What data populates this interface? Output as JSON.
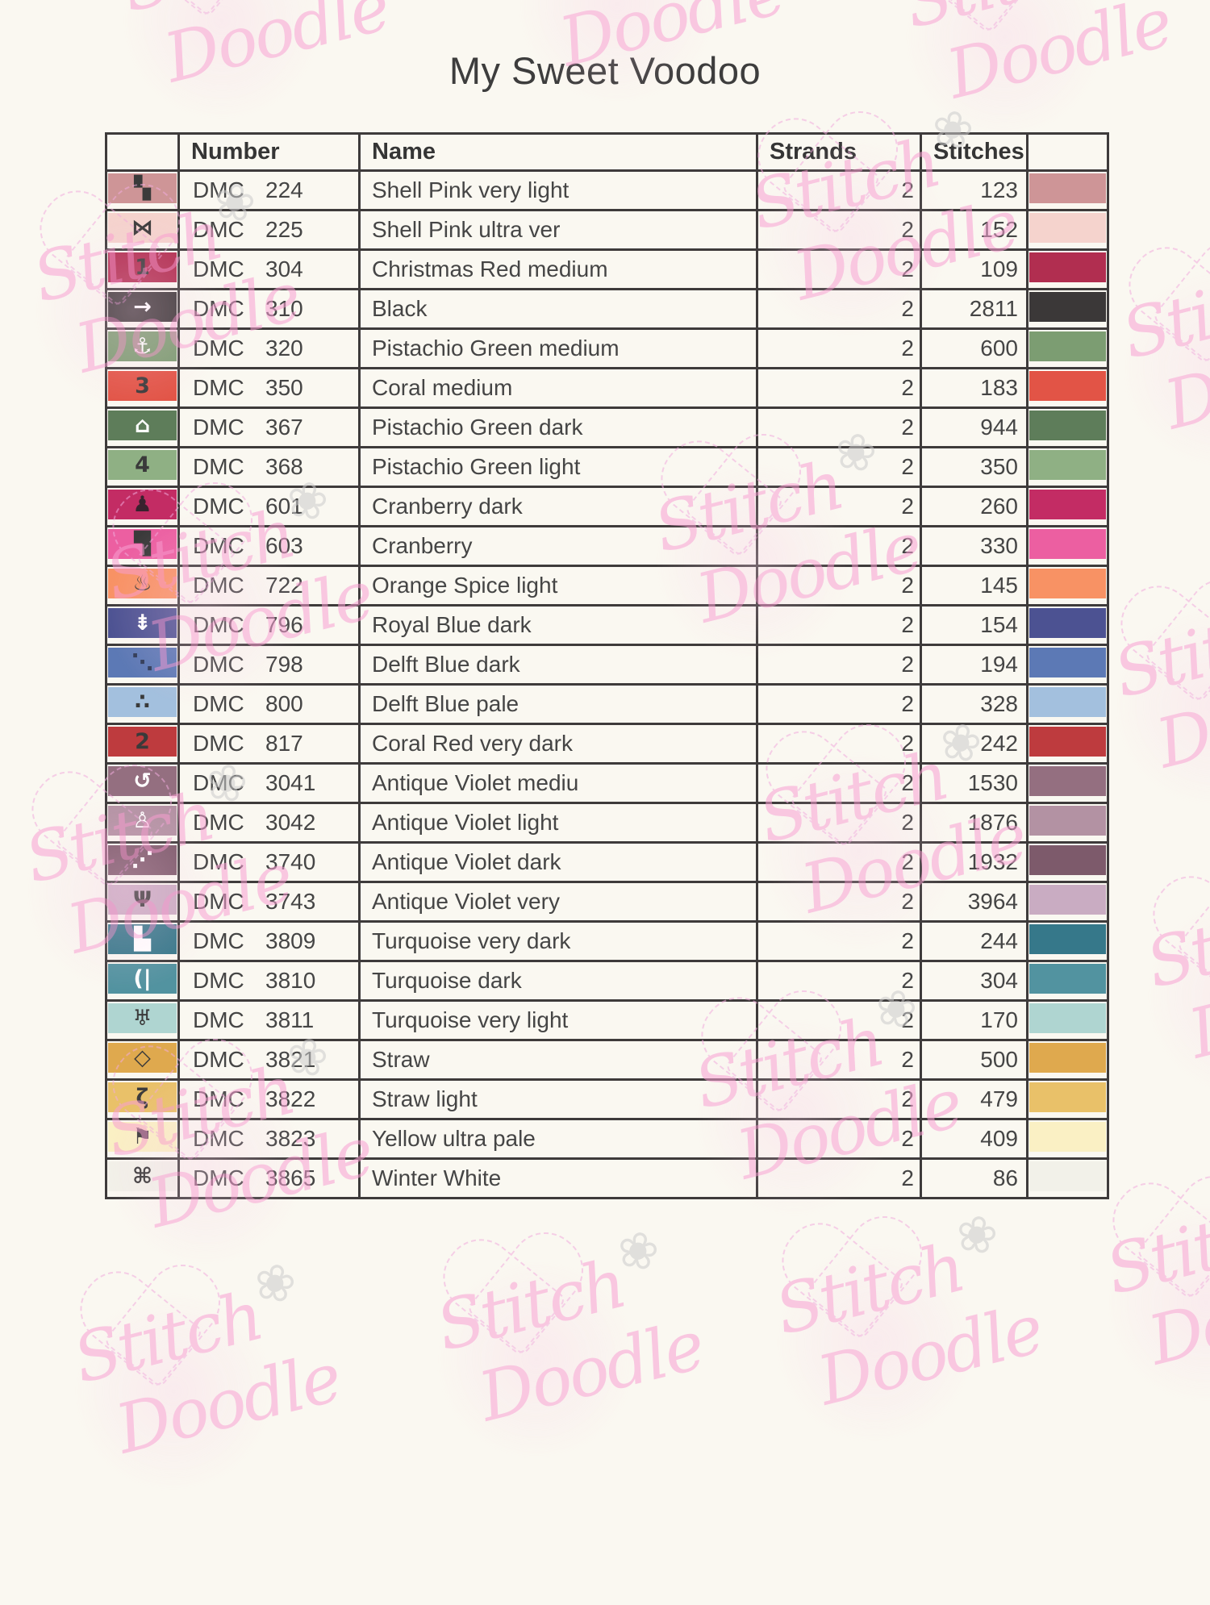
{
  "title": "My Sweet Voodoo",
  "watermark": {
    "word1": "Stitch",
    "word2": "Doodle",
    "flower_icon": "❀"
  },
  "table": {
    "brand": "DMC",
    "headers": {
      "symbol": "",
      "number": "Number",
      "name": "Name",
      "strands": "Strands",
      "stitches": "Stitches",
      "color": ""
    },
    "rows": [
      {
        "code": "224",
        "name": "Shell Pink very light",
        "strands": "2",
        "stitches": "123",
        "color": "#CE9597",
        "symbol": "▚",
        "symbol_fg": "#3A3A3A",
        "icon": "diagonal-squares-icon"
      },
      {
        "code": "225",
        "name": "Shell Pink ultra ver",
        "strands": "2",
        "stitches": "152",
        "color": "#F5D3CD",
        "symbol": "⋈",
        "symbol_fg": "#3A3A3A",
        "icon": "bowtie-icon"
      },
      {
        "code": "304",
        "name": "Christmas Red medium",
        "strands": "2",
        "stitches": "109",
        "color": "#B12E50",
        "symbol": "1",
        "symbol_fg": "#3A3A3A",
        "icon": "digit-1-icon"
      },
      {
        "code": "310",
        "name": "Black",
        "strands": "2",
        "stitches": "2811",
        "color": "#3B3838",
        "symbol": "→",
        "symbol_fg": "#FFFFFF",
        "icon": "arrow-right-icon"
      },
      {
        "code": "320",
        "name": "Pistachio Green medium",
        "strands": "2",
        "stitches": "600",
        "color": "#7C9D72",
        "symbol": "⚓",
        "symbol_fg": "#FFFFFF",
        "icon": "anchor-icon"
      },
      {
        "code": "350",
        "name": "Coral medium",
        "strands": "2",
        "stitches": "183",
        "color": "#E25446",
        "symbol": "3",
        "symbol_fg": "#3A3A3A",
        "icon": "digit-3-icon"
      },
      {
        "code": "367",
        "name": "Pistachio Green dark",
        "strands": "2",
        "stitches": "944",
        "color": "#5E7D5A",
        "symbol": "⌂",
        "symbol_fg": "#FFFFFF",
        "icon": "house-icon"
      },
      {
        "code": "368",
        "name": "Pistachio Green light",
        "strands": "2",
        "stitches": "350",
        "color": "#8FB084",
        "symbol": "4",
        "symbol_fg": "#3A3A3A",
        "icon": "digit-4-icon"
      },
      {
        "code": "601",
        "name": "Cranberry dark",
        "strands": "2",
        "stitches": "260",
        "color": "#C32C64",
        "symbol": "♟",
        "symbol_fg": "#39222E",
        "icon": "person-icon"
      },
      {
        "code": "603",
        "name": "Cranberry",
        "strands": "2",
        "stitches": "330",
        "color": "#EC5FA1",
        "symbol": "▜",
        "symbol_fg": "#3A3A3A",
        "icon": "notched-square-icon"
      },
      {
        "code": "722",
        "name": "Orange Spice light",
        "strands": "2",
        "stitches": "145",
        "color": "#F89264",
        "symbol": "♨",
        "symbol_fg": "#3A3A3A",
        "icon": "hot-springs-icon"
      },
      {
        "code": "796",
        "name": "Royal Blue dark",
        "strands": "2",
        "stitches": "154",
        "color": "#4C5292",
        "symbol": "⇟",
        "symbol_fg": "#FFFFFF",
        "icon": "double-arrow-down-icon"
      },
      {
        "code": "798",
        "name": "Delft Blue dark",
        "strands": "2",
        "stitches": "194",
        "color": "#5C79B5",
        "symbol": "⋱",
        "symbol_fg": "#2E3A56",
        "icon": "diagonal-dots-icon"
      },
      {
        "code": "800",
        "name": "Delft Blue pale",
        "strands": "2",
        "stitches": "328",
        "color": "#A3C0DE",
        "symbol": "∴",
        "symbol_fg": "#3A3A3A",
        "icon": "triangle-dots-icon"
      },
      {
        "code": "817",
        "name": "Coral Red very dark",
        "strands": "2",
        "stitches": "242",
        "color": "#BE3B3E",
        "symbol": "2",
        "symbol_fg": "#3A3A3A",
        "icon": "digit-2-icon"
      },
      {
        "code": "3041",
        "name": "Antique Violet mediu",
        "strands": "2",
        "stitches": "1530",
        "color": "#946F80",
        "symbol": "↺",
        "symbol_fg": "#FFFFFF",
        "icon": "rotate-left-icon"
      },
      {
        "code": "3042",
        "name": "Antique Violet light",
        "strands": "2",
        "stitches": "1876",
        "color": "#B392A3",
        "symbol": "♙",
        "symbol_fg": "#FFFFFF",
        "icon": "person-arms-icon"
      },
      {
        "code": "3740",
        "name": "Antique Violet dark",
        "strands": "2",
        "stitches": "1932",
        "color": "#7D5A6B",
        "symbol": "⋰",
        "symbol_fg": "#FFFFFF",
        "icon": "rising-dots-icon"
      },
      {
        "code": "3743",
        "name": "Antique Violet very",
        "strands": "2",
        "stitches": "3964",
        "color": "#C9ACC2",
        "symbol": "Ψ",
        "symbol_fg": "#3A3A3A",
        "icon": "microphone-icon"
      },
      {
        "code": "3809",
        "name": "Turquoise very dark",
        "strands": "2",
        "stitches": "244",
        "color": "#36788A",
        "symbol": "▙",
        "symbol_fg": "#FFFFFF",
        "icon": "corner-block-icon"
      },
      {
        "code": "3810",
        "name": "Turquoise dark",
        "strands": "2",
        "stitches": "304",
        "color": "#5293A0",
        "symbol": "(|",
        "symbol_fg": "#FFFFFF",
        "icon": "half-bracket-icon"
      },
      {
        "code": "3811",
        "name": "Turquoise very light",
        "strands": "2",
        "stitches": "170",
        "color": "#AFD5D1",
        "symbol": "♅",
        "symbol_fg": "#3A3A3A",
        "icon": "bracket-dots-icon"
      },
      {
        "code": "3821",
        "name": "Straw",
        "strands": "2",
        "stitches": "500",
        "color": "#DFA94E",
        "symbol": "◇",
        "symbol_fg": "#3A3A3A",
        "icon": "diamond-icon"
      },
      {
        "code": "3822",
        "name": "Straw light",
        "strands": "2",
        "stitches": "479",
        "color": "#E9C169",
        "symbol": "ζ",
        "symbol_fg": "#3A3A3A",
        "icon": "squiggle-icon"
      },
      {
        "code": "3823",
        "name": "Yellow ultra pale",
        "strands": "2",
        "stitches": "409",
        "color": "#FAF0C4",
        "symbol": "⚑",
        "symbol_fg": "#3A3A3A",
        "icon": "flag-icon"
      },
      {
        "code": "3865",
        "name": "Winter White",
        "strands": "2",
        "stitches": "86",
        "color": "#F2F1E9",
        "symbol": "⌘",
        "symbol_fg": "#3A3A3A",
        "icon": "clover-icon"
      }
    ]
  }
}
